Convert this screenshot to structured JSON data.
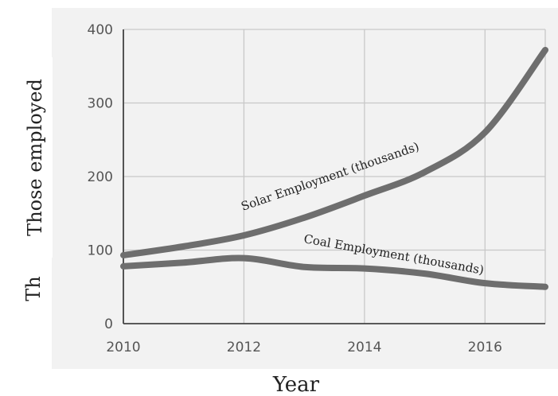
{
  "chart_data": {
    "type": "line",
    "xlabel": "Year",
    "ylabel_hidden": "Th",
    "ylabel": "Those employed",
    "xlim": [
      2010,
      2017
    ],
    "ylim": [
      0,
      400
    ],
    "xticks": [
      2010,
      2012,
      2014,
      2016
    ],
    "yticks": [
      0,
      100,
      200,
      300,
      400
    ],
    "grid": true,
    "colors": {
      "panel": "#f2f2f2",
      "series": "#6e6e6e",
      "grid": "#c8c8c8"
    },
    "series": [
      {
        "annotation": "Solar Employment (thousands)",
        "x": [
          2010,
          2011,
          2012,
          2013,
          2014,
          2015,
          2016,
          2017
        ],
        "y": [
          93,
          105,
          120,
          144,
          174,
          206,
          260,
          372
        ]
      },
      {
        "annotation": "Coal Employment (thousands)",
        "x": [
          2010,
          2011,
          2012,
          2013,
          2014,
          2015,
          2016,
          2017
        ],
        "y": [
          78,
          83,
          89,
          77,
          75,
          68,
          55,
          50
        ]
      }
    ]
  }
}
